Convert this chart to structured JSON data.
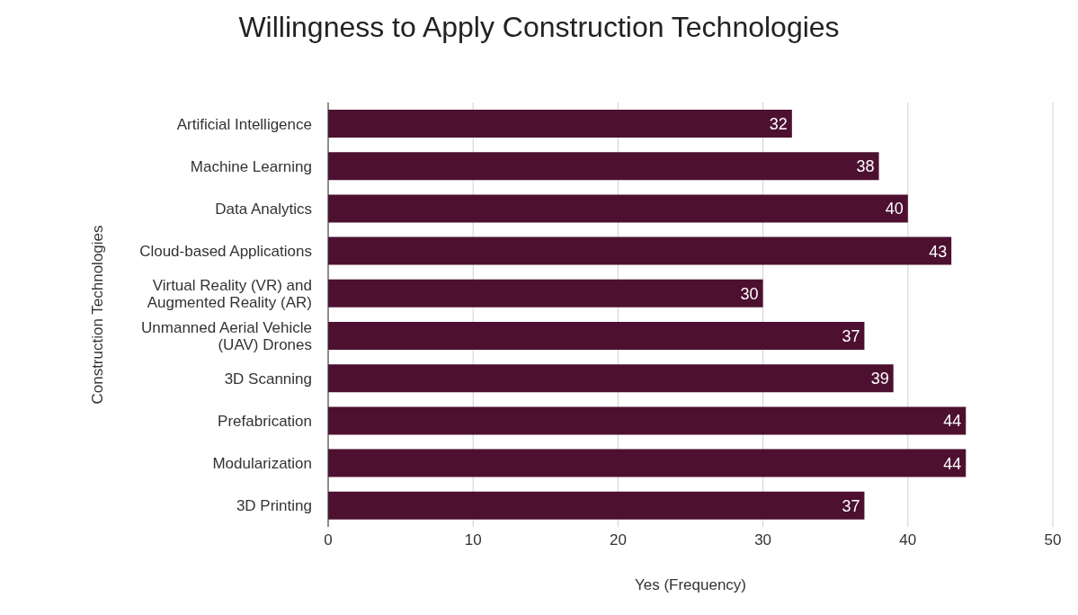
{
  "chart_data": {
    "type": "bar",
    "orientation": "horizontal",
    "title": "Willingness to Apply Construction Technologies",
    "xlabel": "Yes (Frequency)",
    "ylabel": "Construction Technologies",
    "categories": [
      "Artificial Intelligence",
      "Machine Learning",
      "Data Analytics",
      "Cloud-based Applications",
      "Virtual Reality (VR) and Augmented Reality (AR)",
      "Unmanned Aerial Vehicle (UAV) Drones",
      "3D Scanning",
      "Prefabrication",
      "Modularization",
      "3D Printing"
    ],
    "values": [
      32,
      38,
      40,
      43,
      30,
      37,
      39,
      44,
      44,
      37
    ],
    "color": "#4d1030",
    "xlim": [
      0,
      50
    ],
    "xticks": [
      0,
      10,
      20,
      30,
      40,
      50
    ],
    "grid": "x",
    "data_labels": true
  }
}
